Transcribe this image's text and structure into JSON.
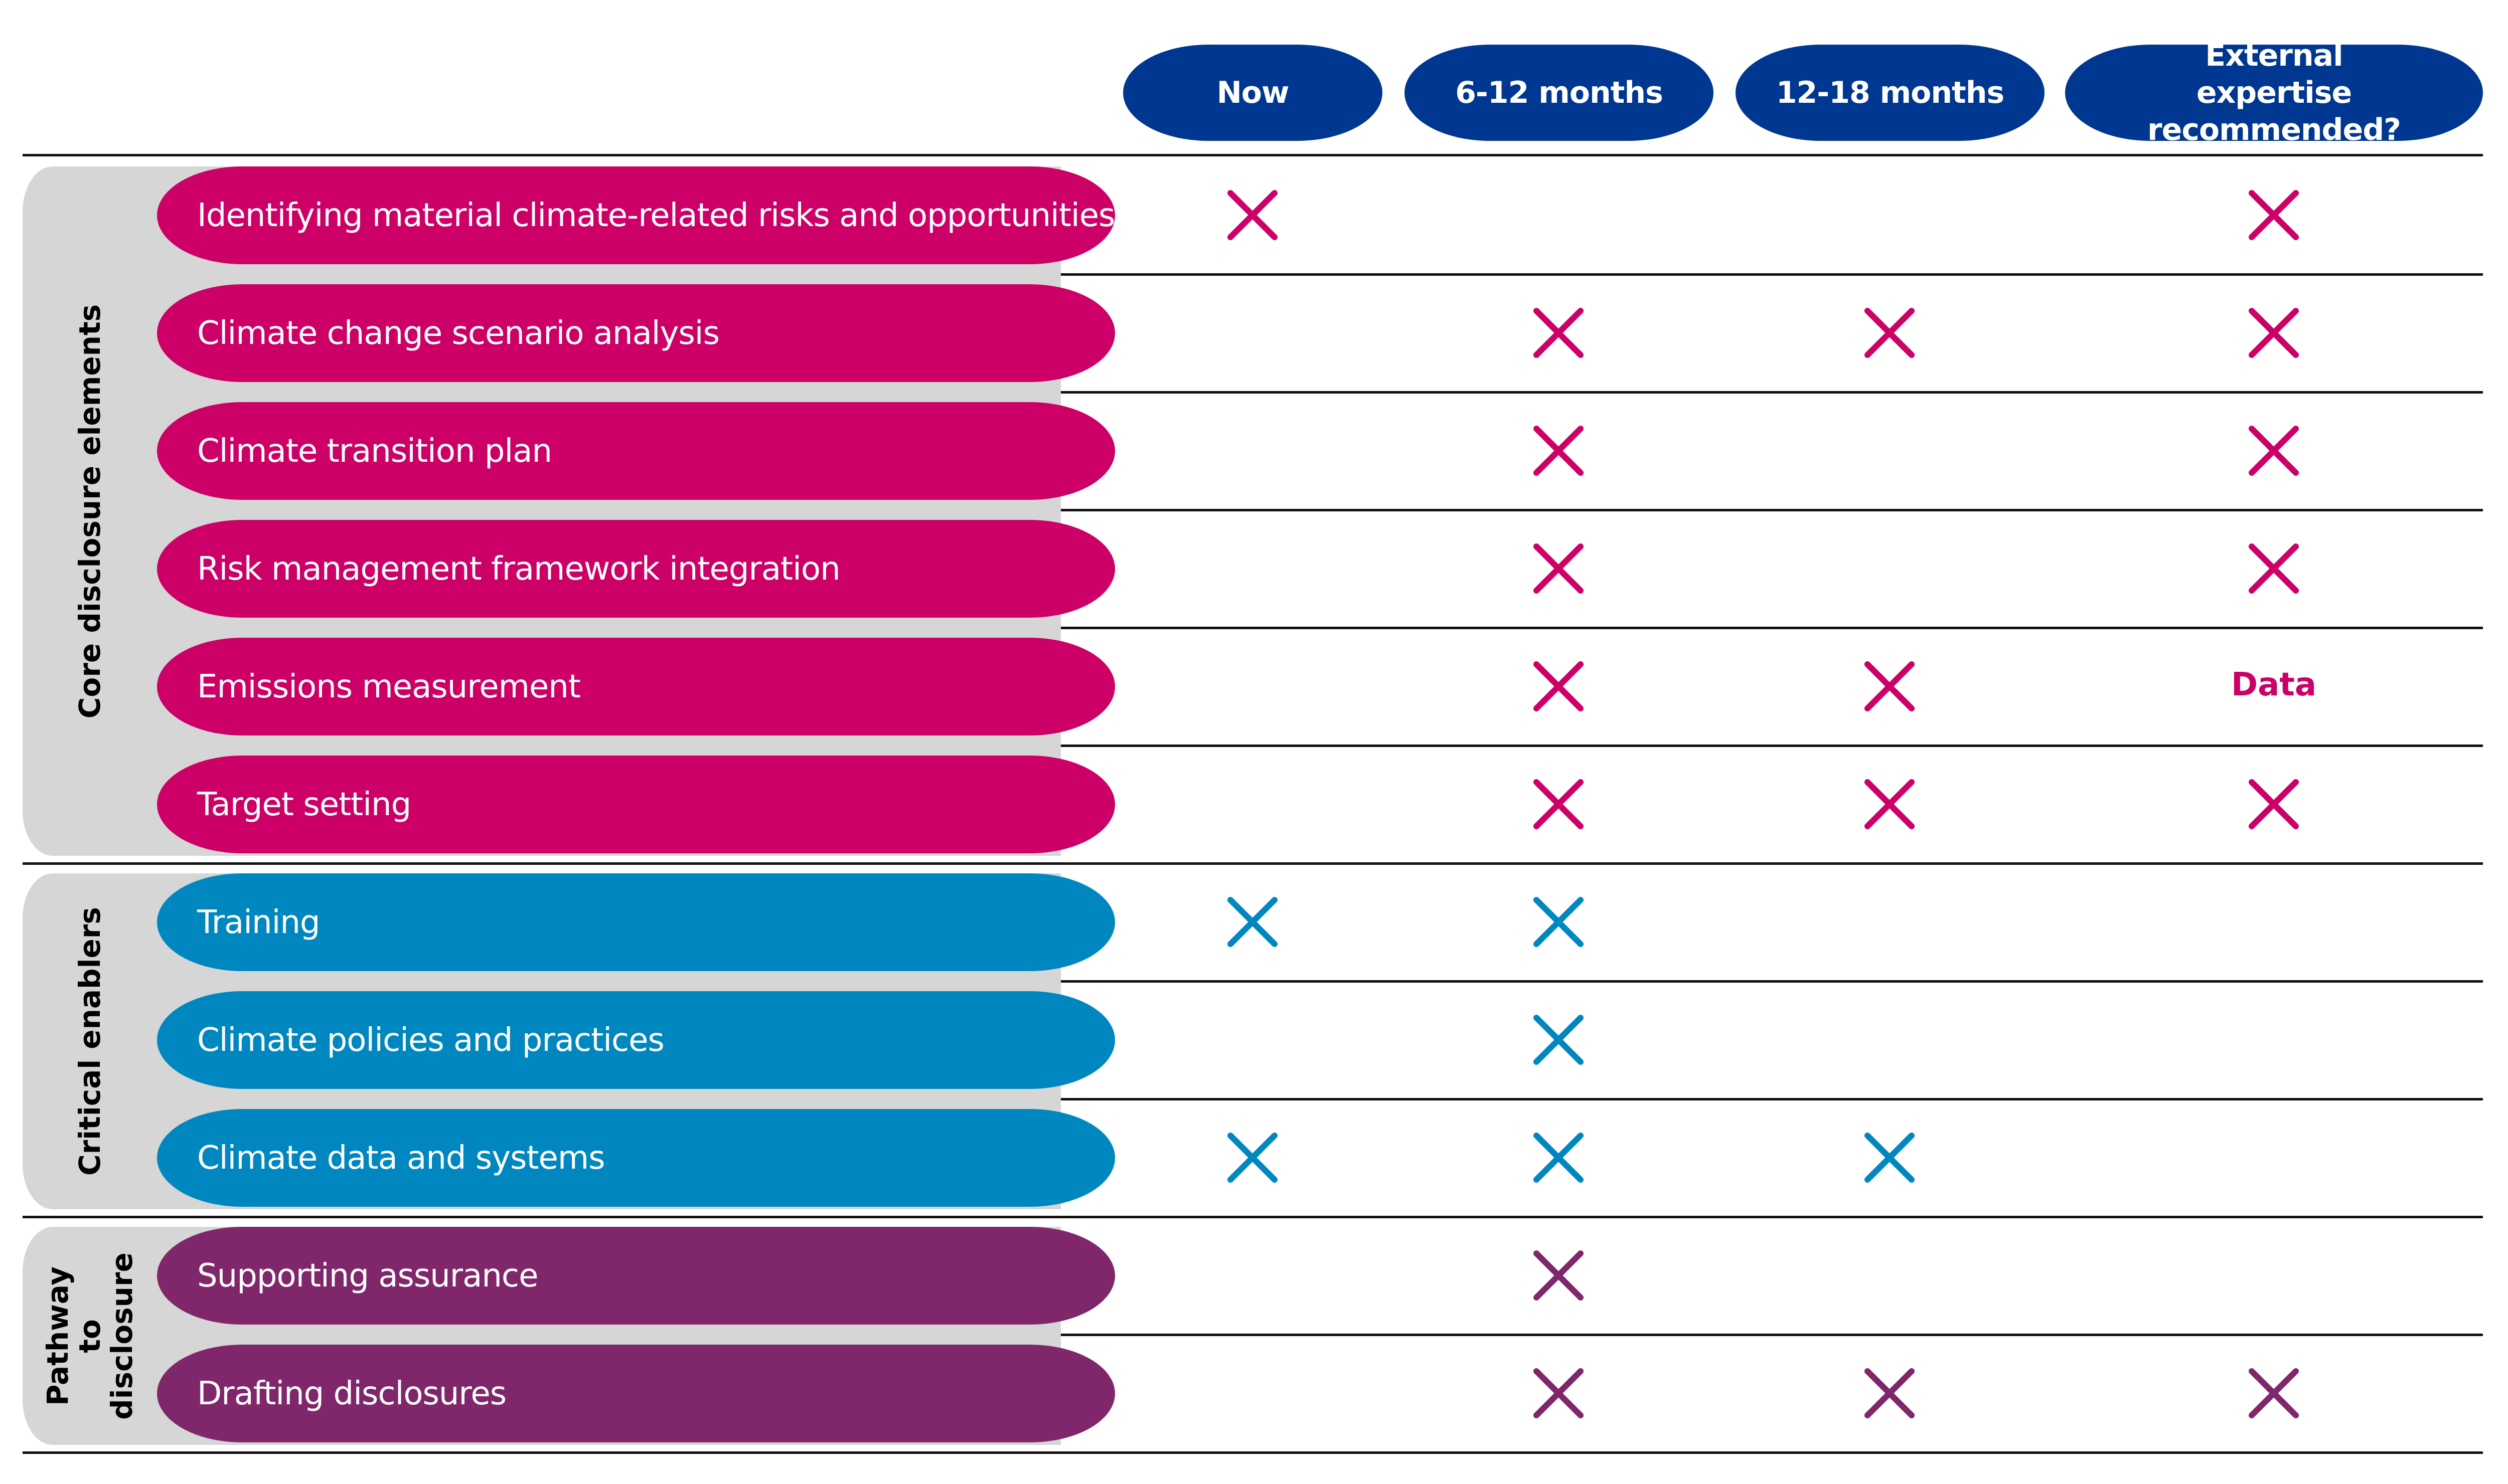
{
  "colors": {
    "header": "#003790",
    "core": "#cc0066",
    "enablers": "#0087c0",
    "pathway": "#80276c",
    "group_bg": "#d6d6d6"
  },
  "columns": [
    {
      "label": "Now"
    },
    {
      "label": "6-12 months"
    },
    {
      "label": "12-18 months"
    },
    {
      "label": "External expertise recommended?"
    }
  ],
  "groups": [
    {
      "label": "Core disclosure elements",
      "color": "#cc0066",
      "rows": [
        {
          "label": "Identifying material climate-related risks and opportunities",
          "marks": [
            "x",
            "",
            "",
            "x"
          ]
        },
        {
          "label": "Climate change scenario analysis",
          "marks": [
            "",
            "x",
            "x",
            "x"
          ]
        },
        {
          "label": "Climate transition plan",
          "marks": [
            "",
            "x",
            "",
            "x"
          ]
        },
        {
          "label": "Risk management framework integration",
          "marks": [
            "",
            "x",
            "",
            "x"
          ]
        },
        {
          "label": "Emissions measurement",
          "marks": [
            "",
            "x",
            "x",
            "Data"
          ]
        },
        {
          "label": "Target setting",
          "marks": [
            "",
            "x",
            "x",
            "x"
          ]
        }
      ]
    },
    {
      "label": "Critical enablers",
      "color": "#0087c0",
      "rows": [
        {
          "label": "Training",
          "marks": [
            "x",
            "x",
            "",
            ""
          ]
        },
        {
          "label": "Climate policies and practices",
          "marks": [
            "",
            "x",
            "",
            ""
          ]
        },
        {
          "label": "Climate data and systems",
          "marks": [
            "x",
            "x",
            "x",
            ""
          ]
        }
      ]
    },
    {
      "label": "Pathway to disclosure",
      "color": "#80276c",
      "rows": [
        {
          "label": "Supporting assurance",
          "marks": [
            "",
            "x",
            "",
            ""
          ]
        },
        {
          "label": "Drafting disclosures",
          "marks": [
            "",
            "x",
            "x",
            "x"
          ]
        }
      ]
    }
  ]
}
